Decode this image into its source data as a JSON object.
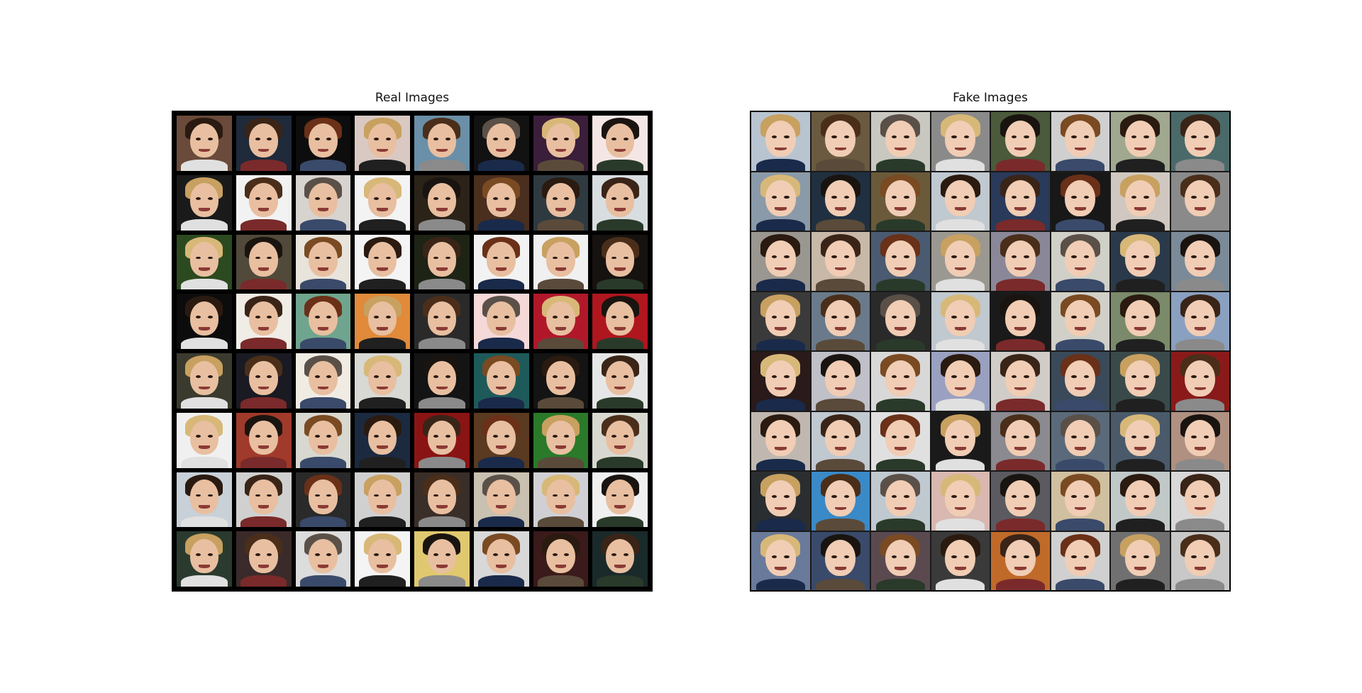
{
  "figure": {
    "panels": [
      {
        "title": "Real Images",
        "rows": 8,
        "cols": 8,
        "content": "face-photo-grid"
      },
      {
        "title": "Fake Images",
        "rows": 8,
        "cols": 8,
        "content": "generated-face-grid"
      }
    ]
  },
  "colors": {
    "real_backgrounds": [
      "#6a4a3a",
      "#1f2a3a",
      "#0d0d0d",
      "#d9c9c2",
      "#6a8fa8",
      "#121212",
      "#3a1e3a",
      "#f5e6e6",
      "#1a1a1a",
      "#f2f2f2",
      "#d7d3cf",
      "#f3f3f3",
      "#2b2218",
      "#4a2e1e",
      "#2f3a40",
      "#d8dde0",
      "#2c4a1f",
      "#514a3a",
      "#e8e3db",
      "#f4f4f4",
      "#1e2415",
      "#f2f2f2",
      "#f0f0f0",
      "#161210",
      "#0c0c0c",
      "#f0ece6",
      "#6fa58e",
      "#e08a3a",
      "#2a2a2a",
      "#f5d8d8",
      "#b0182a",
      "#b0161e",
      "#3a3a2e",
      "#1a1a22",
      "#f0ece4",
      "#d8d8d4",
      "#141414",
      "#1e5a5a",
      "#141414",
      "#e6e6e6",
      "#f0f0f0",
      "#a03a2a",
      "#d8d8d0",
      "#1c2a40",
      "#8a1414",
      "#5a3a20",
      "#2a7a2a",
      "#d8d8d0",
      "#c8d0d8",
      "#d0d0d0",
      "#2a2a2a",
      "#d0d0d0",
      "#3a2e28",
      "#c8c0b0",
      "#d0d0d4",
      "#f0f0f0",
      "#2a3a2e",
      "#3a2a2a",
      "#dcdcdc",
      "#f4f4f4",
      "#e0c870",
      "#d8d8d8",
      "#3a1a1a",
      "#1a2a2a"
    ],
    "fake_backgrounds": [
      "#b8c4d0",
      "#6a5a40",
      "#c8c8c0",
      "#8a8a8a",
      "#4a5a3a",
      "#cfcfcf",
      "#a0a890",
      "#4a6a6a",
      "#8a9aa8",
      "#203040",
      "#6a5a3a",
      "#c0c8d0",
      "#2a3a5a",
      "#181818",
      "#d0c8c0",
      "#8a8a8a",
      "#9a9690",
      "#c8b8a8",
      "#4a5a70",
      "#9a9890",
      "#8a8898",
      "#d0d0c8",
      "#2a3a4a",
      "#7a8a98",
      "#3a3a3a",
      "#6a7a8a",
      "#2a2a2a",
      "#c0c8d0",
      "#1a1a1a",
      "#d0d0c8",
      "#7a8a6a",
      "#8aa0c0",
      "#2a1a1a",
      "#c0c0c8",
      "#d8d8d8",
      "#9aa0c0",
      "#d0ccc8",
      "#3a4a5a",
      "#3a4a4a",
      "#8a1a1a",
      "#c0b8b0",
      "#c0c8d0",
      "#e0e0e0",
      "#1a1a1a",
      "#8a8a90",
      "#5a6a7a",
      "#4a5a6a",
      "#b09080",
      "#2a2e30",
      "#3a8ac8",
      "#c0c8d0",
      "#d8b8b0",
      "#5a5a60",
      "#d0c0a0",
      "#c0c8c8",
      "#d8d8d8",
      "#6a7a9a",
      "#3a4a6a",
      "#5a4a50",
      "#3a3a3a",
      "#c06a2a",
      "#d0d0d0",
      "#707070",
      "#c8c8c8"
    ]
  }
}
